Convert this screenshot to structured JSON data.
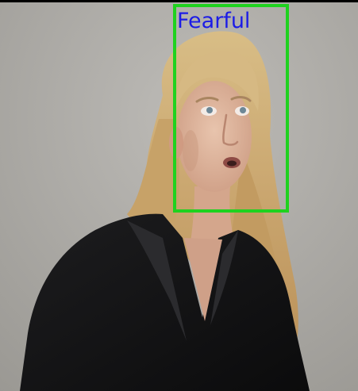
{
  "detection": {
    "label": "Fearful",
    "box_color": "#1fd21f",
    "label_color": "#1c1ce6"
  },
  "scene": {
    "background_color": "#a8a6a1",
    "subject": "woman-with-blonde-hair-black-blouse"
  }
}
